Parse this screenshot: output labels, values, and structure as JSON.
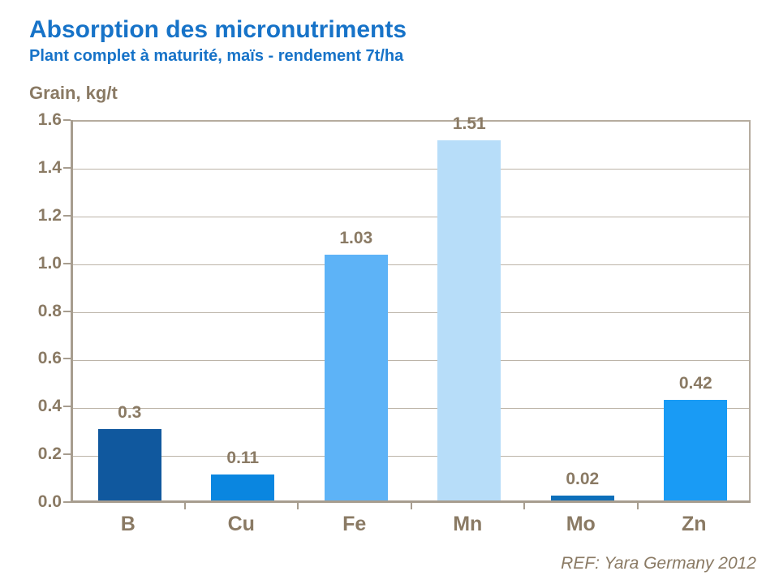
{
  "header": {
    "title": "Absorption des micronutriments",
    "subtitle": "Plant complet à maturité, maïs - rendement 7t/ha"
  },
  "axis_title": "Grain, kg/t",
  "footer": {
    "ref": "REF: Yara Germany 2012"
  },
  "colors": {
    "title_blue": "#1773c8",
    "text_brown": "#8a7a64",
    "axis_line": "#a79d8f",
    "gridline": "#bcb4a8",
    "plot_frame": "#b6ac9f"
  },
  "chart_data": {
    "type": "bar",
    "title": "Absorption des micronutriments",
    "subtitle": "Plant complet à maturité, maïs - rendement 7t/ha",
    "ylabel": "Grain, kg/t",
    "xlabel": "",
    "categories": [
      "B",
      "Cu",
      "Fe",
      "Mn",
      "Mo",
      "Zn"
    ],
    "values": [
      0.3,
      0.11,
      1.03,
      1.51,
      0.02,
      0.42
    ],
    "value_labels": [
      "0.3",
      "0.11",
      "1.03",
      "1.51",
      "0.02",
      "0.42"
    ],
    "bar_colors": [
      "#10589e",
      "#0a86e0",
      "#5db3f7",
      "#b7ddf9",
      "#0d6fba",
      "#199bf5"
    ],
    "ylim": [
      0,
      1.6
    ],
    "ytick_step": 0.2,
    "yticks": [
      "0.0",
      "0.2",
      "0.4",
      "0.6",
      "0.8",
      "1.0",
      "1.2",
      "1.4",
      "1.6"
    ],
    "grid": true,
    "legend_position": "none",
    "source": "REF: Yara Germany 2012"
  }
}
